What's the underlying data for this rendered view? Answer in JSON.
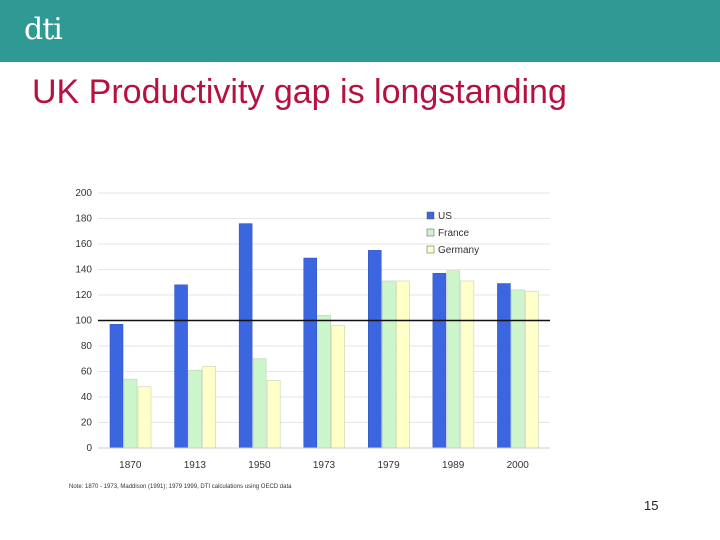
{
  "header": {
    "logo_text": "dti",
    "bar_color": "#2e9a93"
  },
  "slide": {
    "title": "UK Productivity gap is longstanding",
    "title_color": "#b5123f",
    "note": "Note: 1870 - 1973, Maddison (1991); 1979 1999, DTI calculations using OECD data",
    "page_number": "15"
  },
  "chart_data": {
    "type": "bar",
    "categories": [
      "1870",
      "1913",
      "1950",
      "1973",
      "1979",
      "1989",
      "2000"
    ],
    "series": [
      {
        "name": "US",
        "color": "#3c66e0",
        "values": [
          97,
          128,
          176,
          149,
          155,
          137,
          129
        ]
      },
      {
        "name": "France",
        "color": "#ccf5cc",
        "values": [
          54,
          61,
          70,
          104,
          131,
          139,
          124
        ]
      },
      {
        "name": "Germany",
        "color": "#ffffc8",
        "values": [
          48,
          64,
          53,
          96,
          131,
          131,
          123
        ]
      }
    ],
    "ylim": [
      0,
      200
    ],
    "yticks": [
      0,
      20,
      40,
      60,
      80,
      100,
      120,
      140,
      160,
      180,
      200
    ],
    "reference_line": 100,
    "legend_position": "top-right",
    "grid": true
  }
}
